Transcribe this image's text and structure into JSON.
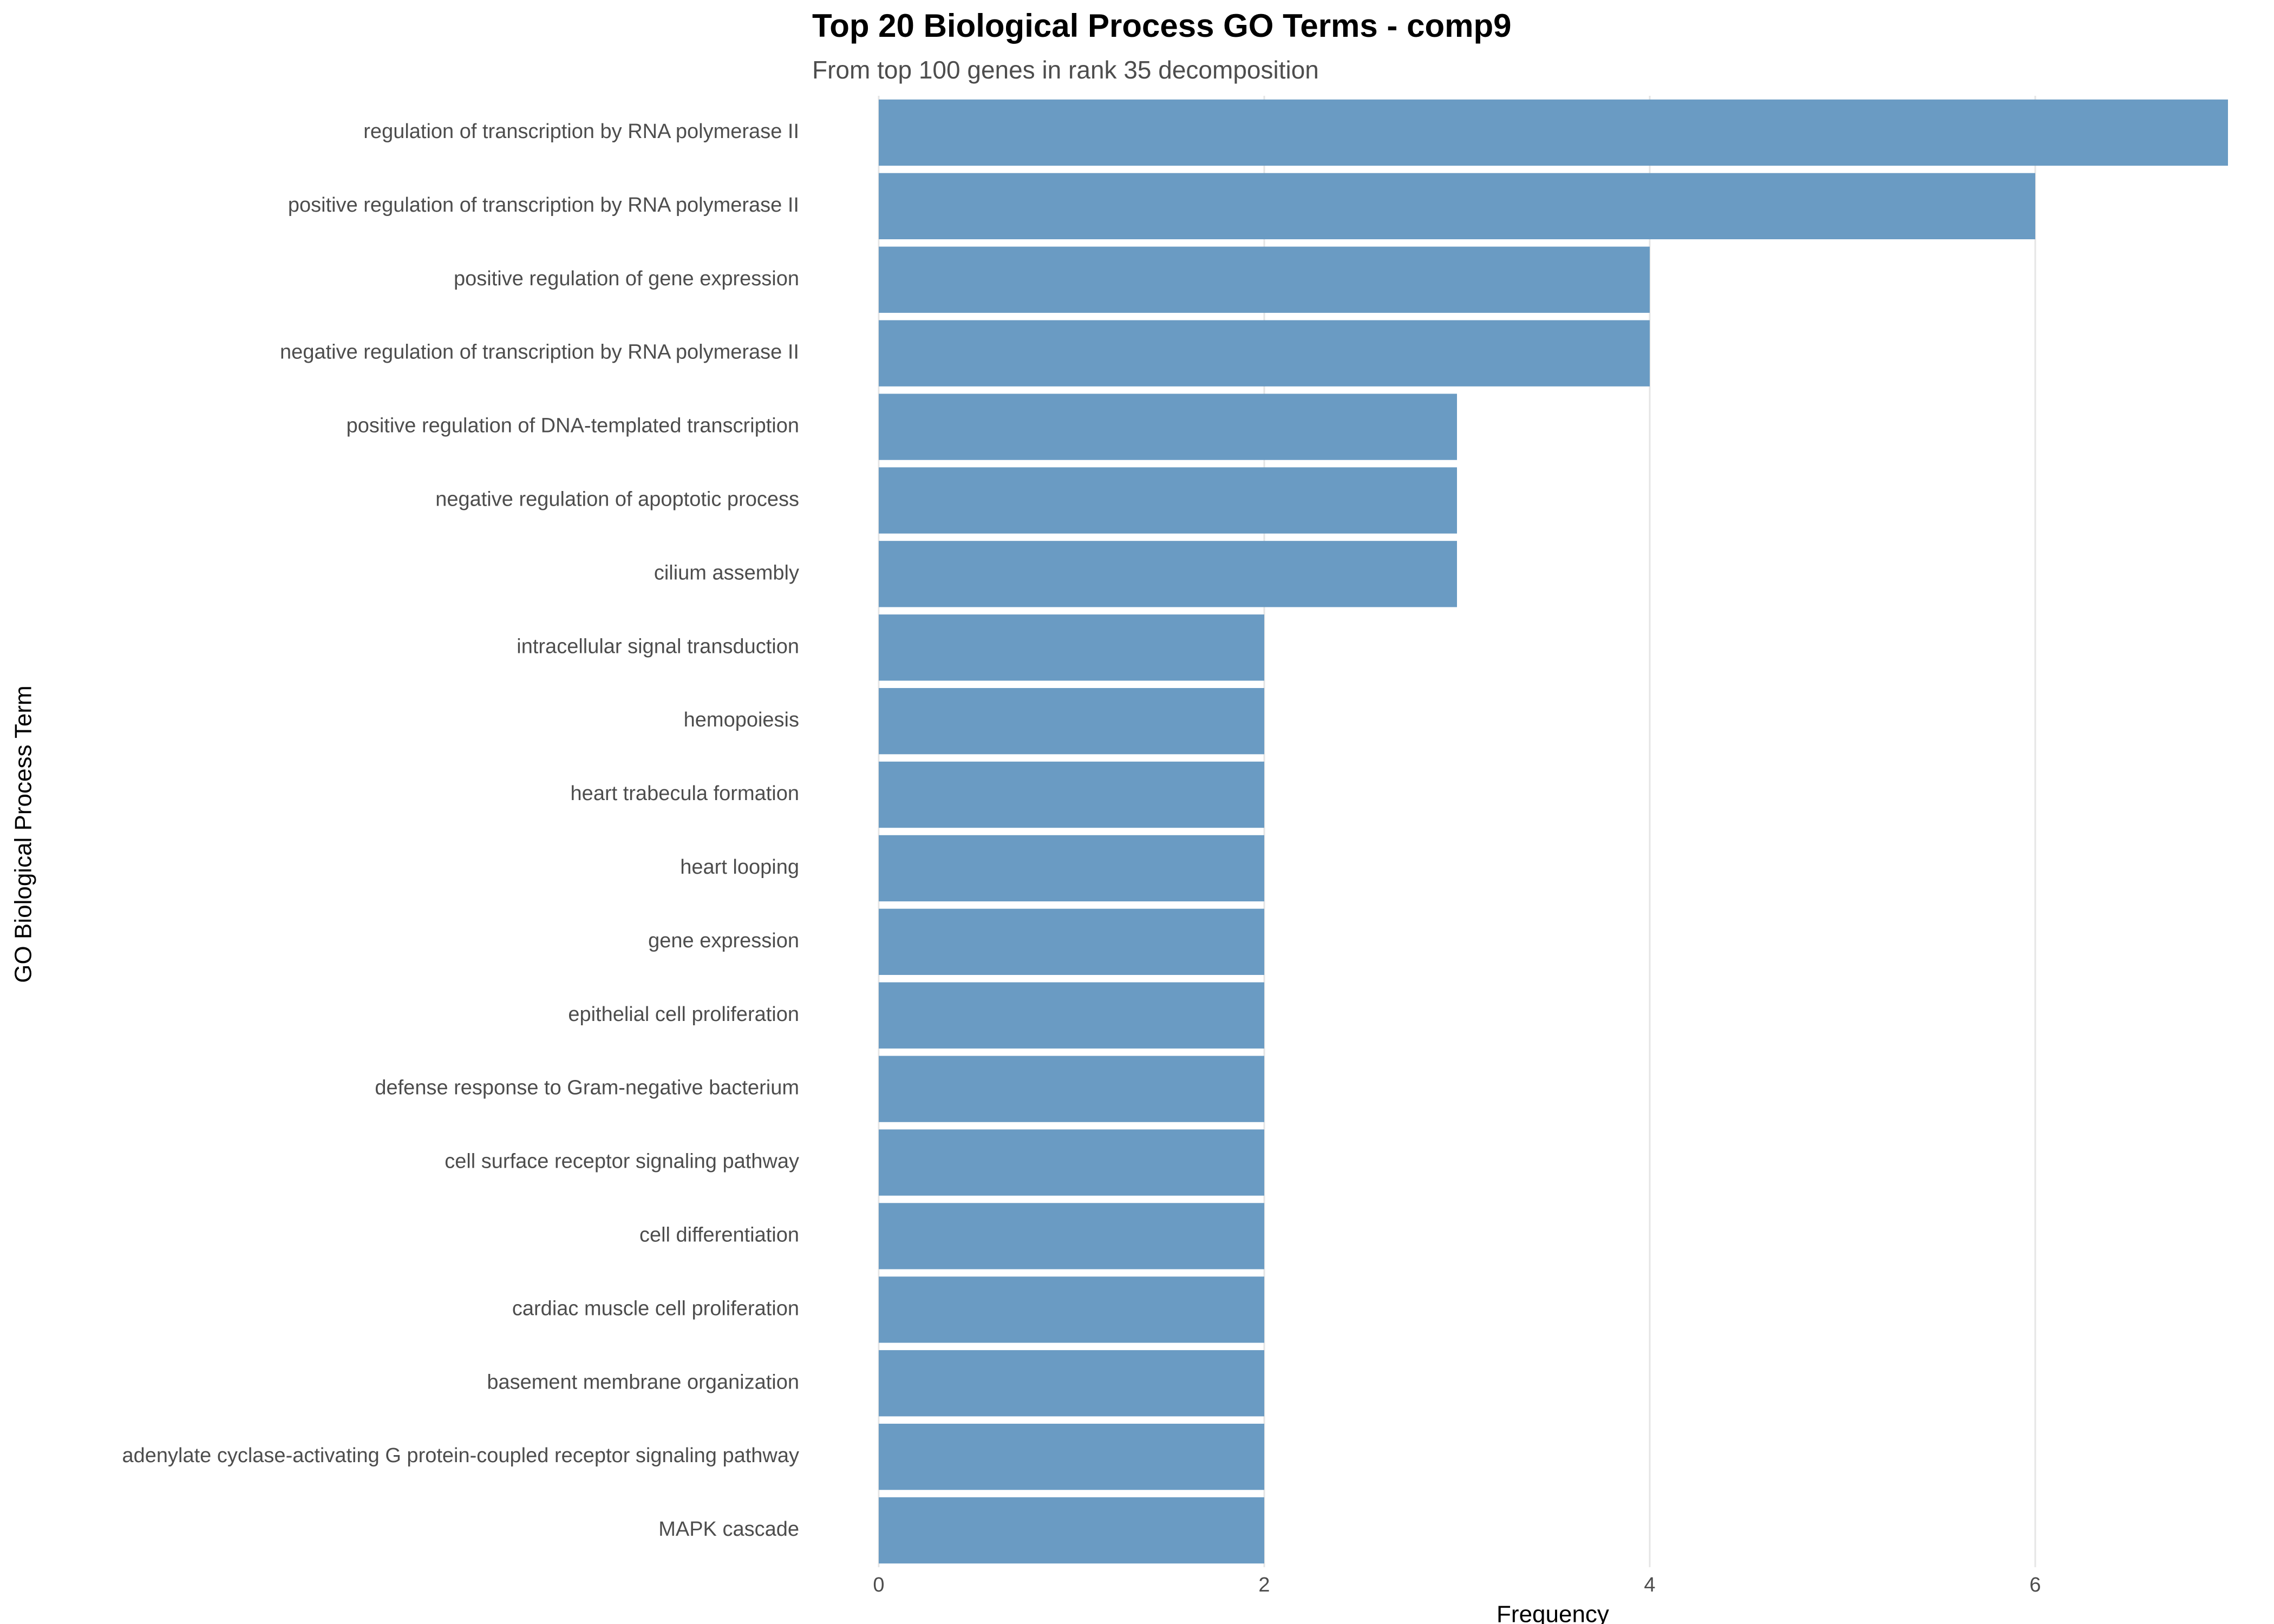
{
  "chart_data": {
    "type": "bar",
    "orientation": "horizontal",
    "title": "Top 20 Biological Process GO Terms - comp9",
    "subtitle": "From top 100 genes in rank 35 decomposition",
    "x_label": "Frequency",
    "y_label": "GO Biological Process Term",
    "categories": [
      "regulation of transcription by RNA polymerase II",
      "positive regulation of transcription by RNA polymerase II",
      "positive regulation of gene expression",
      "negative regulation of transcription by RNA polymerase II",
      "positive regulation of DNA-templated transcription",
      "negative regulation of apoptotic process",
      "cilium assembly",
      "intracellular signal transduction",
      "hemopoiesis",
      "heart trabecula formation",
      "heart looping",
      "gene expression",
      "epithelial cell proliferation",
      "defense response to Gram-negative bacterium",
      "cell surface receptor signaling pathway",
      "cell differentiation",
      "cardiac muscle cell proliferation",
      "basement membrane organization",
      "adenylate cyclase-activating G protein-coupled receptor signaling pathway",
      "MAPK cascade"
    ],
    "values": [
      7,
      6,
      4,
      4,
      3,
      3,
      3,
      2,
      2,
      2,
      2,
      2,
      2,
      2,
      2,
      2,
      2,
      2,
      2,
      2
    ],
    "color": "#6a9bc3",
    "xlim": [
      0,
      7
    ],
    "xticks": [
      0,
      2,
      4,
      6
    ],
    "grid": true
  }
}
